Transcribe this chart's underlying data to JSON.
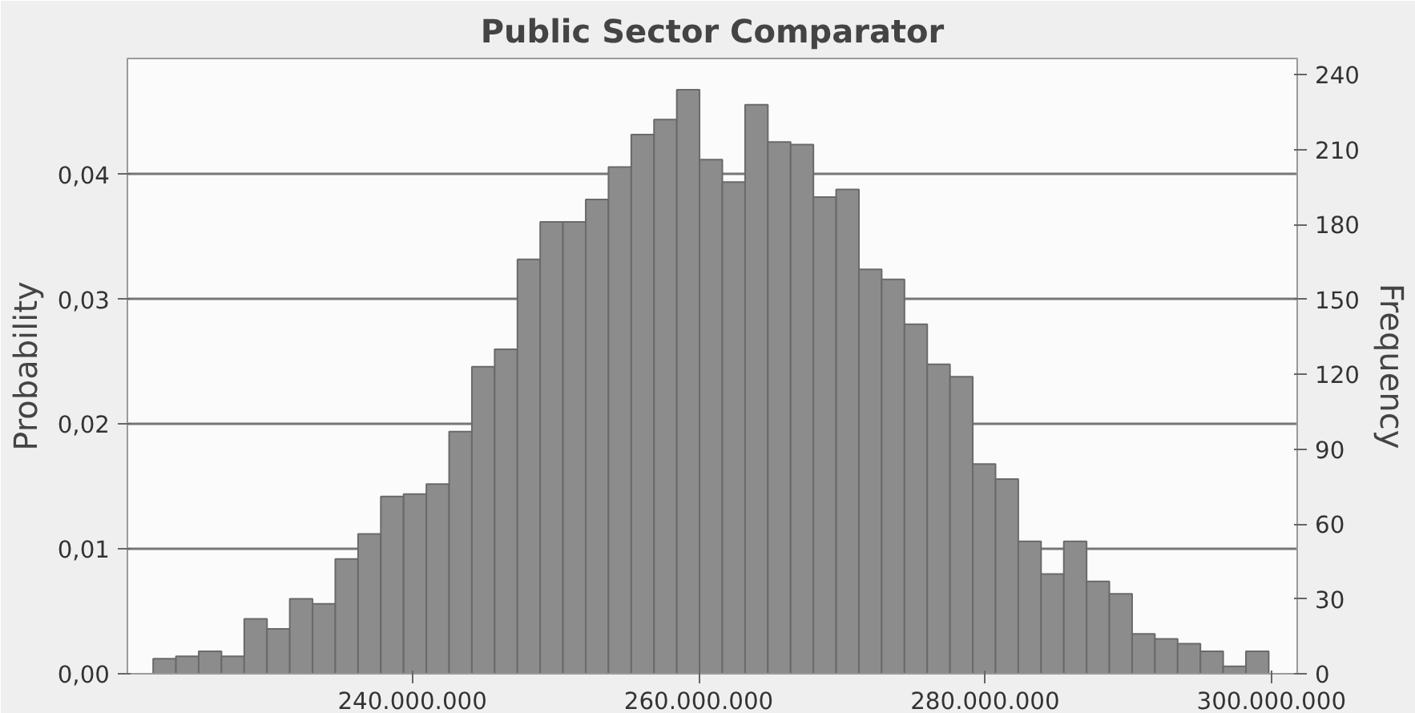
{
  "chart_data": {
    "type": "histogram",
    "title": "Public Sector Comparator",
    "ylabel": "Probability",
    "y2label": "Frequency",
    "bins": [
      221900000,
      223490000,
      225080000,
      226670000,
      228260000,
      229850000,
      231440000,
      233030000,
      234620000,
      236210000,
      237800000,
      239390000,
      240980000,
      242570000,
      244160000,
      245750000,
      247340000,
      248930000,
      250520000,
      252110000,
      253700000,
      255290000,
      256880000,
      258470000,
      260060000,
      261650000,
      263240000,
      264830000,
      266420000,
      268010000,
      269600000,
      271190000,
      272780000,
      274370000,
      275960000,
      277550000,
      279140000,
      280730000,
      282320000,
      283910000,
      285500000,
      287090000,
      288680000,
      290270000,
      291860000,
      293450000,
      295040000,
      296630000,
      298220000,
      299810000
    ],
    "series": [
      {
        "color": "#8c8c8c",
        "axis": "y2",
        "values": [
          6,
          7,
          9,
          7,
          22,
          18,
          30,
          28,
          46,
          56,
          71,
          72,
          76,
          97,
          123,
          130,
          166,
          181,
          181,
          190,
          203,
          216,
          222,
          234,
          206,
          197,
          228,
          213,
          212,
          191,
          194,
          162,
          158,
          140,
          124,
          119,
          84,
          78,
          53,
          40,
          53,
          37,
          32,
          16,
          14,
          12,
          9,
          3,
          9
        ]
      }
    ],
    "xlim": [
      220100000,
      301800000
    ],
    "xticks": [
      {
        "value": 240000000,
        "label": "240.000.000"
      },
      {
        "value": 260000000,
        "label": "260.000.000"
      },
      {
        "value": 280000000,
        "label": "280.000.000"
      },
      {
        "value": 300000000,
        "label": "300.000.000"
      }
    ],
    "ylim": [
      0,
      0.0493
    ],
    "yticks": [
      {
        "value": 0,
        "label": "0,00"
      },
      {
        "value": 0.01,
        "label": "0,01"
      },
      {
        "value": 0.02,
        "label": "0,02"
      },
      {
        "value": 0.03,
        "label": "0,03"
      },
      {
        "value": 0.04,
        "label": "0,04"
      }
    ],
    "y2lim": [
      0,
      246.5
    ],
    "y2ticks": [
      0,
      30,
      60,
      90,
      120,
      150,
      180,
      210,
      240
    ],
    "grid": "y"
  }
}
